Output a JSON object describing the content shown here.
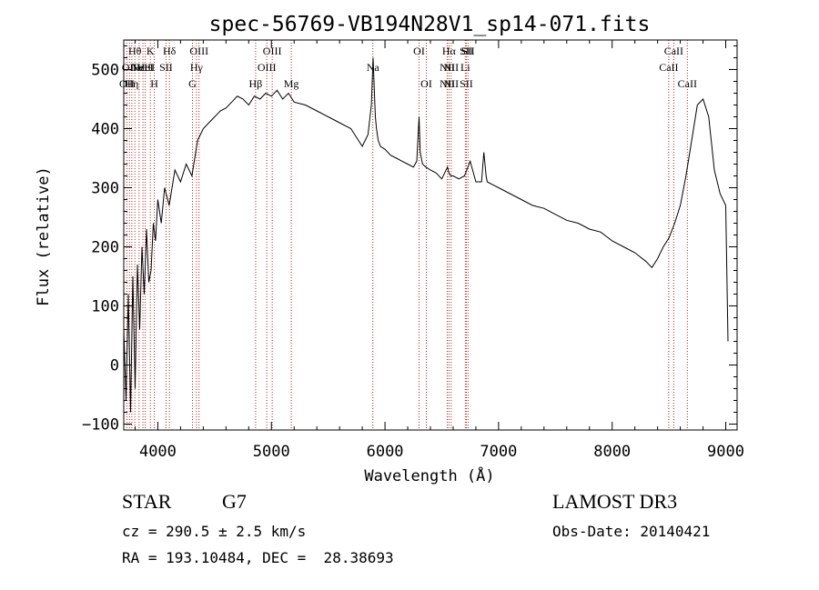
{
  "chart_data": {
    "type": "line",
    "title": "spec-56769-VB194N28V1_sp14-071.fits",
    "xlabel": "Wavelength (Å)",
    "ylabel": "Flux (relative)",
    "xlim": [
      3700,
      9100
    ],
    "ylim": [
      -110,
      550
    ],
    "xticks": [
      4000,
      5000,
      6000,
      7000,
      8000,
      9000
    ],
    "yticks": [
      -100,
      0,
      100,
      200,
      300,
      400,
      500
    ],
    "grid": false,
    "line_color": "#000000",
    "marker_color": "#b22222",
    "series": [
      {
        "x": [
          3700,
          3720,
          3740,
          3760,
          3780,
          3800,
          3820,
          3840,
          3860,
          3880,
          3900,
          3920,
          3940,
          3960,
          3980,
          4000,
          4030,
          4060,
          4100,
          4150,
          4200,
          4250,
          4300,
          4350,
          4400,
          4450,
          4500,
          4550,
          4600,
          4650,
          4700,
          4750,
          4800,
          4850,
          4900,
          4950,
          5000,
          5050,
          5100,
          5150,
          5200,
          5300,
          5400,
          5500,
          5600,
          5700,
          5800,
          5850,
          5880,
          5895,
          5905,
          5915,
          5925,
          5940,
          5960,
          6000,
          6050,
          6100,
          6150,
          6200,
          6250,
          6280,
          6300,
          6310,
          6330,
          6360,
          6400,
          6450,
          6500,
          6550,
          6563,
          6580,
          6600,
          6650,
          6700,
          6750,
          6800,
          6850,
          6870,
          6890,
          6900,
          6950,
          7000,
          7100,
          7200,
          7300,
          7400,
          7500,
          7600,
          7700,
          7800,
          7900,
          8000,
          8100,
          8200,
          8300,
          8350,
          8400,
          8450,
          8500,
          8550,
          8600,
          8650,
          8700,
          8750,
          8800,
          8850,
          8900,
          8950,
          9000,
          9020
        ],
        "y": [
          60,
          -60,
          120,
          -80,
          150,
          -40,
          170,
          60,
          200,
          120,
          230,
          140,
          160,
          240,
          210,
          280,
          240,
          300,
          270,
          330,
          310,
          340,
          320,
          380,
          400,
          410,
          420,
          430,
          435,
          445,
          455,
          450,
          440,
          455,
          450,
          460,
          455,
          465,
          450,
          460,
          445,
          440,
          430,
          420,
          410,
          400,
          370,
          390,
          440,
          520,
          470,
          420,
          400,
          380,
          370,
          365,
          355,
          350,
          345,
          340,
          335,
          345,
          420,
          360,
          340,
          335,
          330,
          325,
          315,
          335,
          325,
          320,
          320,
          315,
          320,
          345,
          310,
          310,
          360,
          320,
          310,
          305,
          300,
          290,
          280,
          270,
          265,
          255,
          245,
          240,
          230,
          225,
          210,
          200,
          190,
          175,
          165,
          180,
          200,
          215,
          240,
          270,
          320,
          380,
          440,
          450,
          420,
          330,
          290,
          270,
          40
        ]
      }
    ],
    "lines": [
      {
        "wl": 3727,
        "labels": [
          "OII"
        ],
        "rows": [
          2
        ]
      },
      {
        "wl": 3750,
        "labels": [
          "OII"
        ],
        "rows": [
          1
        ]
      },
      {
        "wl": 3771,
        "labels": [
          "Hη"
        ],
        "rows": [
          2
        ]
      },
      {
        "wl": 3798,
        "labels": [
          "Hθ"
        ],
        "rows": [
          0
        ]
      },
      {
        "wl": 3835,
        "labels": [
          "Hε"
        ],
        "rows": [
          1
        ]
      },
      {
        "wl": 3869,
        "labels": [
          "NeIII"
        ],
        "rows": [
          1
        ]
      },
      {
        "wl": 3889,
        "labels": [
          "HeI"
        ],
        "rows": [
          1
        ]
      },
      {
        "wl": 3934,
        "labels": [
          "K"
        ],
        "rows": [
          0
        ]
      },
      {
        "wl": 3969,
        "labels": [
          "H"
        ],
        "rows": [
          2
        ]
      },
      {
        "wl": 4072,
        "labels": [
          "SII"
        ],
        "rows": [
          1
        ]
      },
      {
        "wl": 4102,
        "labels": [
          "Hδ"
        ],
        "rows": [
          0
        ]
      },
      {
        "wl": 4305,
        "labels": [
          "G"
        ],
        "rows": [
          2
        ]
      },
      {
        "wl": 4340,
        "labels": [
          "Hγ"
        ],
        "rows": [
          1
        ]
      },
      {
        "wl": 4363,
        "labels": [
          "OIII"
        ],
        "rows": [
          0
        ]
      },
      {
        "wl": 4861,
        "labels": [
          "Hβ"
        ],
        "rows": [
          2
        ]
      },
      {
        "wl": 4959,
        "labels": [
          "OIII"
        ],
        "rows": [
          1
        ]
      },
      {
        "wl": 5007,
        "labels": [
          "OIII"
        ],
        "rows": [
          0
        ]
      },
      {
        "wl": 5175,
        "labels": [
          "Mg"
        ],
        "rows": [
          2
        ]
      },
      {
        "wl": 5893,
        "labels": [
          "Na"
        ],
        "rows": [
          1
        ]
      },
      {
        "wl": 6300,
        "labels": [
          "OI"
        ],
        "rows": [
          0
        ]
      },
      {
        "wl": 6364,
        "labels": [
          "OI"
        ],
        "rows": [
          2
        ]
      },
      {
        "wl": 6548,
        "labels": [
          "NII"
        ],
        "rows": [
          1,
          2
        ]
      },
      {
        "wl": 6563,
        "labels": [
          "Hα"
        ],
        "rows": [
          0
        ]
      },
      {
        "wl": 6583,
        "labels": [
          "NII"
        ],
        "rows": [
          1,
          2
        ]
      },
      {
        "wl": 6707,
        "labels": [
          "Li"
        ],
        "rows": [
          1
        ]
      },
      {
        "wl": 6716,
        "labels": [
          "SII"
        ],
        "rows": [
          0,
          2
        ]
      },
      {
        "wl": 6731,
        "labels": [
          "SII"
        ],
        "rows": [
          0
        ]
      },
      {
        "wl": 8498,
        "labels": [
          "CaII"
        ],
        "rows": [
          1
        ]
      },
      {
        "wl": 8542,
        "labels": [
          "CaII"
        ],
        "rows": [
          0
        ]
      },
      {
        "wl": 8662,
        "labels": [
          "CaII"
        ],
        "rows": [
          2
        ]
      }
    ]
  },
  "info": {
    "class_type": "STAR",
    "subclass": "G7",
    "survey": "LAMOST DR3",
    "cz": "cz = 290.5 ± 2.5 km/s",
    "obs_date": "Obs-Date: 20140421",
    "coords": "RA = 193.10484, DEC =  28.38693"
  }
}
